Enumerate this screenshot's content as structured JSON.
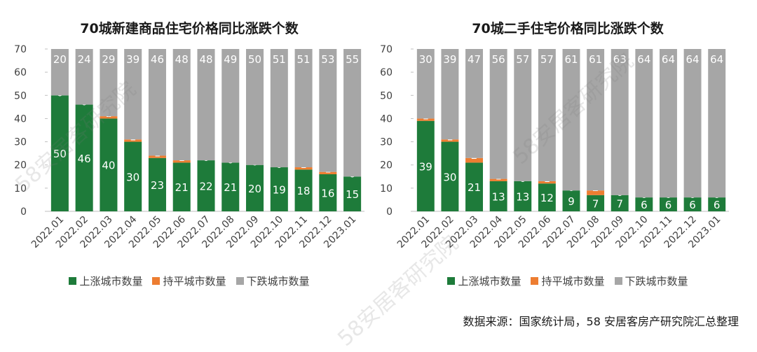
{
  "colors": {
    "up": "#1e7b3a",
    "flat": "#ed7d31",
    "down": "#a6a6a6"
  },
  "legend": {
    "up": "上涨城市数量",
    "flat": "持平城市数量",
    "down": "下跌城市数量"
  },
  "source": "数据来源：国家统计局，58 安居客房产研究院汇总整理",
  "watermark": {
    "text": "58安居客研究院"
  },
  "chart_data": [
    {
      "type": "bar",
      "stacked": true,
      "title": "70城新建商品住宅价格同比涨跌个数",
      "categories": [
        "2022.01",
        "2022.02",
        "2022.03",
        "2022.04",
        "2022.05",
        "2022.06",
        "2022.07",
        "2022.08",
        "2022.09",
        "2022.10",
        "2022.11",
        "2022.12",
        "2023.01"
      ],
      "yticks": [
        0,
        10,
        20,
        30,
        40,
        50,
        60,
        70
      ],
      "ylim": [
        0,
        70
      ],
      "series": [
        {
          "name": "上涨城市数量",
          "values": [
            50,
            46,
            40,
            30,
            23,
            21,
            22,
            21,
            20,
            19,
            18,
            16,
            15
          ]
        },
        {
          "name": "持平城市数量",
          "values": [
            0,
            0,
            1,
            1,
            1,
            1,
            0,
            0,
            0,
            0,
            1,
            1,
            0
          ]
        },
        {
          "name": "下跌城市数量",
          "values": [
            20,
            24,
            29,
            39,
            46,
            48,
            48,
            49,
            50,
            51,
            51,
            53,
            55
          ]
        }
      ]
    },
    {
      "type": "bar",
      "stacked": true,
      "title": "70城二手住宅价格同比涨跌个数",
      "categories": [
        "2022.01",
        "2022.02",
        "2022.03",
        "2022.04",
        "2022.05",
        "2022.06",
        "2022.07",
        "2022.08",
        "2022.09",
        "2022.10",
        "2022.11",
        "2022.12",
        "2023.01"
      ],
      "yticks": [
        0,
        10,
        20,
        30,
        40,
        50,
        60,
        70
      ],
      "ylim": [
        0,
        70
      ],
      "series": [
        {
          "name": "上涨城市数量",
          "values": [
            39,
            30,
            21,
            13,
            13,
            12,
            9,
            7,
            7,
            6,
            6,
            6,
            6
          ]
        },
        {
          "name": "持平城市数量",
          "values": [
            1,
            1,
            2,
            1,
            0,
            1,
            0,
            2,
            0,
            0,
            0,
            0,
            0
          ]
        },
        {
          "name": "下跌城市数量",
          "values": [
            30,
            39,
            47,
            56,
            57,
            57,
            61,
            61,
            63,
            64,
            64,
            64,
            64
          ]
        }
      ]
    }
  ]
}
